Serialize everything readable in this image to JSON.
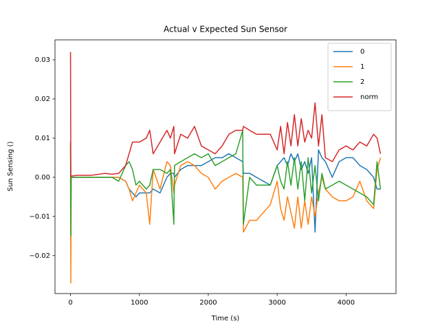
{
  "chart_data": {
    "type": "line",
    "title": "Actual v Expected Sun Sensor",
    "xlabel": "Time (s)",
    "ylabel": "Sun Sensing ()",
    "x": [
      0,
      5,
      10,
      100,
      300,
      500,
      600,
      700,
      800,
      850,
      900,
      950,
      1000,
      1100,
      1150,
      1200,
      1300,
      1400,
      1450,
      1500,
      1510,
      1600,
      1700,
      1800,
      1900,
      2000,
      2100,
      2200,
      2300,
      2400,
      2500,
      2510,
      2600,
      2700,
      2800,
      2900,
      3000,
      3050,
      3100,
      3150,
      3200,
      3250,
      3300,
      3350,
      3400,
      3450,
      3500,
      3550,
      3600,
      3650,
      3700,
      3800,
      3900,
      4000,
      4100,
      4200,
      4300,
      4400,
      4450,
      4500
    ],
    "series": [
      {
        "name": "0",
        "color": "#1f77b4",
        "values": [
          0.008,
          0,
          0,
          0,
          0,
          0,
          0,
          0,
          -0.001,
          -0.003,
          -0.004,
          -0.005,
          -0.004,
          -0.004,
          -0.004,
          -0.003,
          -0.004,
          0,
          0.001,
          0.001,
          0,
          0.002,
          0.003,
          0.003,
          0.003,
          0.004,
          0.005,
          0.005,
          0.006,
          0.005,
          0.004,
          0.001,
          0.001,
          0,
          -0.001,
          -0.002,
          0.003,
          0.004,
          0.005,
          0.003,
          0.006,
          0.004,
          0.006,
          0.002,
          0.004,
          0.001,
          0.005,
          -0.014,
          0.007,
          0.005,
          0.004,
          0,
          0.004,
          0.005,
          0.005,
          0.003,
          0.002,
          0,
          -0.003,
          -0.003
        ]
      },
      {
        "name": "1",
        "color": "#ff7f0e",
        "values": [
          0,
          -0.027,
          0,
          0,
          0,
          0,
          0,
          0,
          -0.001,
          -0.003,
          -0.006,
          -0.004,
          -0.002,
          -0.004,
          -0.012,
          0.002,
          -0.003,
          0.004,
          0.003,
          -0.004,
          -0.002,
          0.003,
          0.004,
          0.003,
          0.001,
          0,
          -0.003,
          -0.001,
          0,
          0.001,
          0,
          -0.014,
          -0.011,
          -0.011,
          -0.009,
          -0.007,
          -0.001,
          -0.008,
          -0.011,
          -0.005,
          -0.009,
          -0.013,
          -0.005,
          -0.013,
          -0.006,
          -0.012,
          -0.005,
          -0.01,
          -0.004,
          0,
          -0.003,
          -0.005,
          -0.006,
          -0.006,
          -0.005,
          -0.001,
          -0.006,
          -0.008,
          0.002,
          0.005
        ]
      },
      {
        "name": "2",
        "color": "#2ca02c",
        "values": [
          0.009,
          -0.015,
          0,
          0,
          0,
          0,
          0,
          -0.001,
          0.003,
          0.004,
          0.002,
          -0.002,
          -0.001,
          -0.003,
          -0.002,
          0.002,
          0.002,
          0.001,
          0.002,
          -0.012,
          0.003,
          0.004,
          0.005,
          0.006,
          0.005,
          0.006,
          0.003,
          0.004,
          0.005,
          0.006,
          0.012,
          -0.012,
          0,
          -0.002,
          -0.002,
          -0.002,
          0.003,
          -0.001,
          -0.003,
          0.004,
          -0.002,
          0.005,
          -0.003,
          0.004,
          -0.006,
          0.005,
          -0.004,
          0.003,
          -0.006,
          0.001,
          -0.003,
          -0.002,
          -0.001,
          -0.002,
          -0.003,
          -0.004,
          -0.005,
          -0.007,
          0.004,
          -0.003
        ]
      },
      {
        "name": "norm",
        "color": "#d62728",
        "values": [
          0.032,
          0,
          0.0003,
          0.0005,
          0.0005,
          0.001,
          0.0008,
          0.001,
          0.003,
          0.006,
          0.009,
          0.009,
          0.009,
          0.01,
          0.012,
          0.006,
          0.009,
          0.012,
          0.01,
          0.013,
          0.006,
          0.011,
          0.01,
          0.013,
          0.008,
          0.007,
          0.006,
          0.008,
          0.011,
          0.012,
          0.012,
          0.013,
          0.012,
          0.011,
          0.011,
          0.011,
          0.007,
          0.013,
          0.006,
          0.014,
          0.008,
          0.016,
          0.008,
          0.015,
          0.009,
          0.012,
          0.01,
          0.019,
          0.008,
          0.016,
          0.005,
          0.004,
          0.007,
          0.008,
          0.007,
          0.009,
          0.008,
          0.011,
          0.01,
          0.006
        ]
      }
    ],
    "xlim": [
      -225,
      4725
    ],
    "xticks": [
      0,
      1000,
      2000,
      3000,
      4000
    ],
    "ylim": [
      -0.0297,
      0.0351
    ],
    "yticks": [
      {
        "value": -0.02,
        "label": "−0.02"
      },
      {
        "value": -0.01,
        "label": "−0.01"
      },
      {
        "value": 0,
        "label": "0.00"
      },
      {
        "value": 0.01,
        "label": "0.01"
      },
      {
        "value": 0.02,
        "label": "0.02"
      },
      {
        "value": 0.03,
        "label": "0.03"
      }
    ],
    "legend": "upper right",
    "grid": false
  }
}
